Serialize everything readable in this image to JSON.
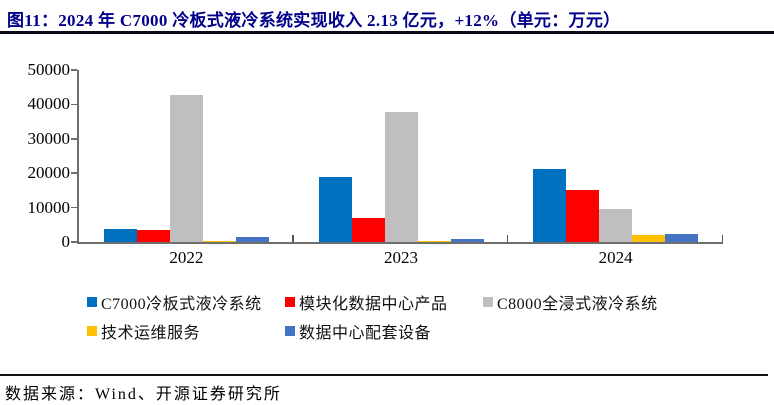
{
  "title": "图11：2024 年 C7000 冷板式液冷系统实现收入 2.13 亿元，+12%（单元：万元）",
  "source": "数据来源：Wind、开源证券研究所",
  "colors": {
    "title_text": "#00008B",
    "title_rule": "#0A0A14",
    "axis": "#6E6E6E",
    "background": "#FFFFFF"
  },
  "chart_data": {
    "type": "bar",
    "categories": [
      "2022",
      "2023",
      "2024"
    ],
    "series": [
      {
        "name": "C7000冷板式液冷系统",
        "color": "#0070C0",
        "values": [
          3800,
          19000,
          21300
        ]
      },
      {
        "name": "模块化数据中心产品",
        "color": "#FF0000",
        "values": [
          3400,
          6900,
          15000
        ]
      },
      {
        "name": "C8000全浸式液冷系统",
        "color": "#BFBFBF",
        "values": [
          42800,
          37800,
          9600
        ]
      },
      {
        "name": "技术运维服务",
        "color": "#FFC000",
        "values": [
          300,
          300,
          2000
        ]
      },
      {
        "name": "数据中心配套设备",
        "color": "#4472C4",
        "values": [
          1600,
          900,
          2300
        ]
      }
    ],
    "xlabel": "",
    "ylabel": "",
    "unit": "万元",
    "ylim": [
      0,
      50000
    ],
    "yticks": [
      0,
      10000,
      20000,
      30000,
      40000,
      50000
    ],
    "grid": false,
    "legend_position": "bottom"
  }
}
